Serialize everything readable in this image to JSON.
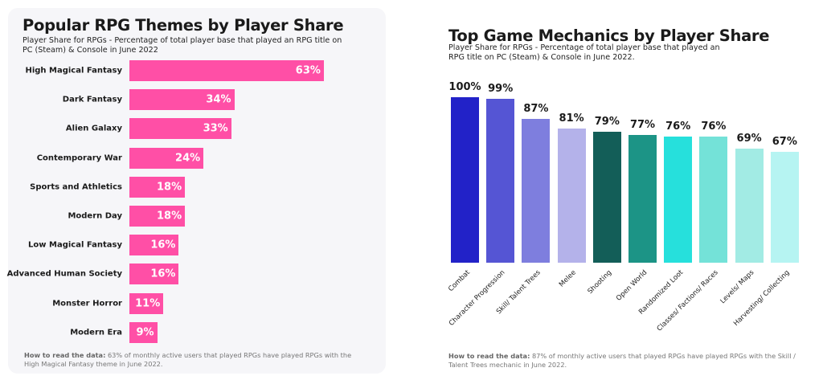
{
  "left": {
    "title": "Popular RPG Themes by Player Share",
    "subtitle": "Player Share for RPGs - Percentage of total player base that played an RPG title on PC (Steam) & Console in June 2022",
    "note_label": "How to read the data:",
    "note_text": " 63% of monthly active users that played RPGs have played RPGs with the High Magical Fantasy theme in June 2022."
  },
  "right": {
    "title": "Top Game Mechanics by Player Share",
    "subtitle": "Player Share for RPGs - Percentage of total player base that played an RPG title on PC (Steam) & Console in June 2022.",
    "note_label": "How to read the data:",
    "note_text": " 87% of monthly active users that played RPGs have played RPGs with the Skill / Talent Trees mechanic in June 2022."
  },
  "chart_data": [
    {
      "type": "bar",
      "orientation": "horizontal",
      "title": "Popular RPG Themes by Player Share",
      "categories": [
        "High Magical Fantasy",
        "Dark Fantasy",
        "Alien Galaxy",
        "Contemporary War",
        "Sports and Athletics",
        "Modern Day",
        "Low Magical Fantasy",
        "Advanced Human Society",
        "Monster Horror",
        "Modern Era"
      ],
      "values": [
        63,
        34,
        33,
        24,
        18,
        18,
        16,
        16,
        11,
        9
      ],
      "labels": [
        "63%",
        "34%",
        "33%",
        "24%",
        "18%",
        "18%",
        "16%",
        "16%",
        "11%",
        "9%"
      ],
      "unit": "%",
      "color": "#ff4fa6",
      "grid": false
    },
    {
      "type": "bar",
      "orientation": "vertical",
      "title": "Top Game Mechanics by Player Share",
      "categories": [
        "Combat",
        "Character Progression",
        "Skill/ Talent Trees",
        "Melee",
        "Shooting",
        "Open World",
        "Randomized Loot",
        "Classes/ Factions/ Races",
        "Levels/ Maps",
        "Harvesting/ Collecting"
      ],
      "values": [
        100,
        99,
        87,
        81,
        79,
        77,
        76,
        76,
        69,
        67
      ],
      "labels": [
        "100%",
        "99%",
        "87%",
        "81%",
        "79%",
        "77%",
        "76%",
        "76%",
        "69%",
        "67%"
      ],
      "unit": "%",
      "colors": [
        "#2222c8",
        "#5555d4",
        "#7e7ede",
        "#b4b2ea",
        "#135e58",
        "#1c9486",
        "#26e0dc",
        "#74e2d8",
        "#a2ebe4",
        "#b6f4f2"
      ],
      "ylim": [
        0,
        100
      ],
      "grid": false
    }
  ]
}
